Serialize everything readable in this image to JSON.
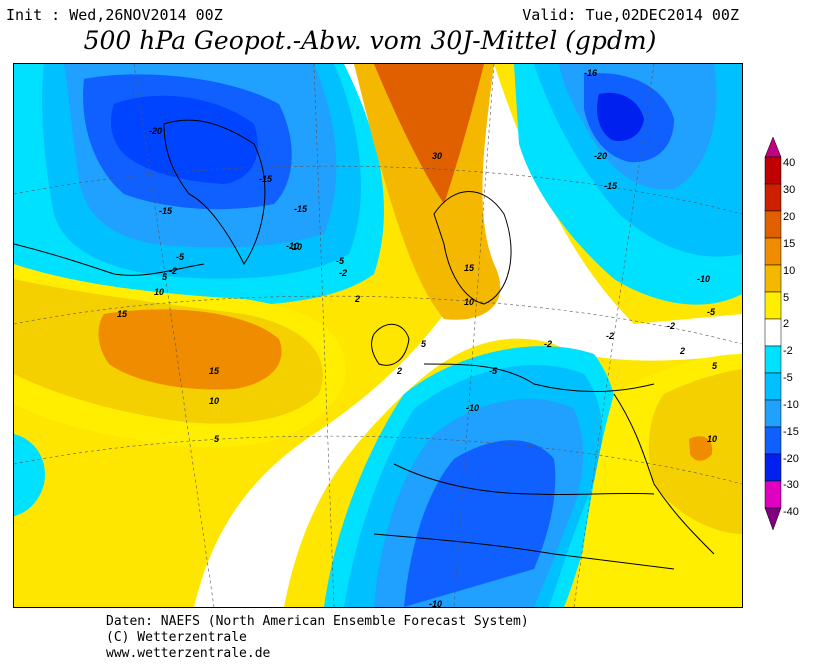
{
  "header": {
    "init": "Init : Wed,26NOV2014 00Z",
    "valid": "Valid: Tue,02DEC2014 00Z",
    "title": "500 hPa Geopot.-Abw. vom 30J-Mittel (gpdm)"
  },
  "map": {
    "contour_labels": [
      "-20",
      "-15",
      "-16",
      "-20",
      "-15",
      "-15",
      "-15",
      "-10",
      "-5",
      "-2",
      "-5",
      "-2",
      "5",
      "10",
      "15",
      "2",
      "30",
      "15",
      "10",
      "-10",
      "-5",
      "-2",
      "2",
      "-5",
      "-2",
      "-2",
      "-10",
      "-10",
      "15",
      "10",
      "5",
      "5",
      "10",
      "5",
      "2",
      "-10"
    ]
  },
  "legend": {
    "ticks": [
      "40",
      "30",
      "20",
      "15",
      "10",
      "5",
      "2",
      "-2",
      "-5",
      "-10",
      "-15",
      "-20",
      "-30",
      "-40"
    ],
    "colors": [
      "#c00000",
      "#cc0000",
      "#e06000",
      "#f08c00",
      "#f5b800",
      "#ffee00",
      "#fff9a0",
      "#ffffff",
      "#00e0ff",
      "#00c0ff",
      "#20a0ff",
      "#1060ff",
      "#0020f0",
      "#e000c0",
      "#800080"
    ]
  },
  "footer": {
    "line1": "Daten: NAEFS (North American Ensemble Forecast System)",
    "line2": "(C) Wetterzentrale",
    "line3": "www.wetterzentrale.de"
  }
}
